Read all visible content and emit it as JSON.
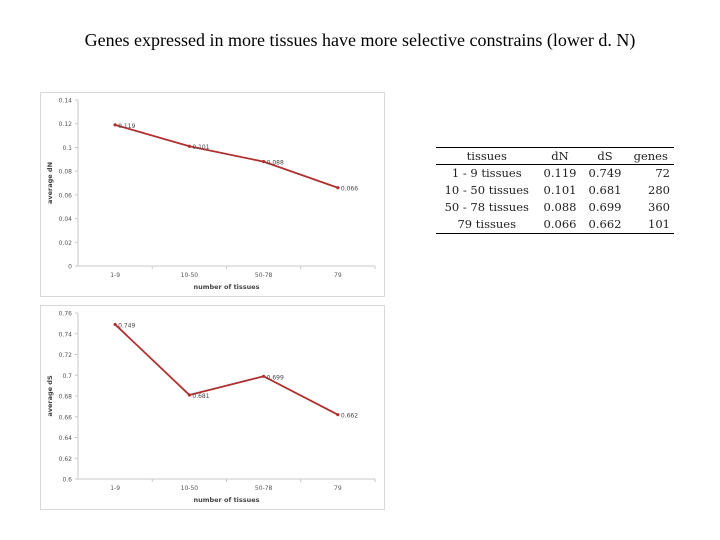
{
  "title": "Genes expressed in more tissues have more selective constrains (lower d. N)",
  "chart_data": [
    {
      "type": "line",
      "categories": [
        "1-9",
        "10-50",
        "50-78",
        "79"
      ],
      "series": [
        {
          "values": [
            0.119,
            0.101,
            0.088,
            0.066
          ],
          "labels": [
            "0.119",
            "0.101",
            "0.088",
            "0.066"
          ]
        }
      ],
      "xlabel": "number of tissues",
      "ylabel": "average dN",
      "ylim": [
        0,
        0.14
      ],
      "yticks": [
        "0",
        "0.02",
        "0.04",
        "0.06",
        "0.08",
        "0.1",
        "0.12",
        "0.14"
      ],
      "grid": false,
      "color": "#b03030"
    },
    {
      "type": "line",
      "categories": [
        "1-9",
        "10-50",
        "50-78",
        "79"
      ],
      "series": [
        {
          "values": [
            0.749,
            0.681,
            0.699,
            0.662
          ],
          "labels": [
            "0.749",
            "0.681",
            "0.699",
            "0.662"
          ]
        }
      ],
      "xlabel": "number of tissues",
      "ylabel": "average dS",
      "ylim": [
        0.6,
        0.76
      ],
      "yticks": [
        "0.6",
        "0.62",
        "0.64",
        "0.66",
        "0.68",
        "0.7",
        "0.72",
        "0.74",
        "0.76"
      ],
      "grid": false,
      "color": "#b03030"
    }
  ],
  "table": {
    "headers": [
      "tissues",
      "dN",
      "dS",
      "genes"
    ],
    "rows": [
      [
        "1 - 9 tissues",
        "0.119",
        "0.749",
        "72"
      ],
      [
        "10 - 50 tissues",
        "0.101",
        "0.681",
        "280"
      ],
      [
        "50 - 78 tissues",
        "0.088",
        "0.699",
        "360"
      ],
      [
        "79 tissues",
        "0.066",
        "0.662",
        "101"
      ]
    ]
  }
}
